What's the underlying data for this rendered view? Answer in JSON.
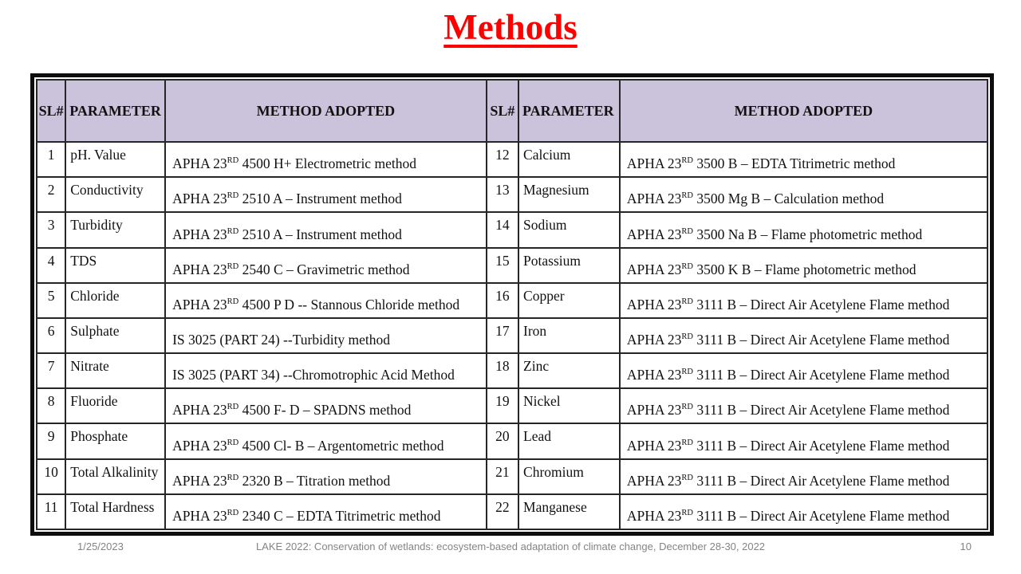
{
  "slide": {
    "title": "Methods",
    "title_color": "#ff0000"
  },
  "table": {
    "header_bg": "#cbc3dc",
    "border_color": "#0d0d0d",
    "headers": {
      "sl": "SL#",
      "parameter": "PARAMETER",
      "method": "METHOD ADOPTED"
    },
    "left_rows": [
      {
        "sl": "1",
        "parameter": "pH. Value",
        "method": {
          "pre": "APHA 23",
          "sup": "RD",
          "rest": " 4500 H+ Electrometric method"
        }
      },
      {
        "sl": "2",
        "parameter": "Conductivity",
        "method": {
          "pre": "APHA 23",
          "sup": "RD",
          "rest": " 2510 A – Instrument method"
        }
      },
      {
        "sl": "3",
        "parameter": "Turbidity",
        "method": {
          "pre": "APHA 23",
          "sup": "RD",
          "rest": " 2510 A – Instrument method"
        }
      },
      {
        "sl": "4",
        "parameter": "TDS",
        "method": {
          "pre": "APHA 23",
          "sup": "RD",
          "rest": " 2540 C – Gravimetric method"
        }
      },
      {
        "sl": "5",
        "parameter": "Chloride",
        "method": {
          "pre": "APHA 23",
          "sup": "RD",
          "rest": " 4500 P D -- Stannous Chloride method"
        }
      },
      {
        "sl": "6",
        "parameter": "Sulphate",
        "method": {
          "pre": "IS 3025 (PART 24) --Turbidity method",
          "sup": "",
          "rest": ""
        }
      },
      {
        "sl": "7",
        "parameter": "Nitrate",
        "method": {
          "pre": "IS 3025 (PART 34) --Chromotrophic Acid Method",
          "sup": "",
          "rest": ""
        }
      },
      {
        "sl": "8",
        "parameter": "Fluoride",
        "method": {
          "pre": "APHA 23",
          "sup": "RD",
          "rest": " 4500 F- D – SPADNS method"
        }
      },
      {
        "sl": "9",
        "parameter": "Phosphate",
        "method": {
          "pre": "APHA 23",
          "sup": "RD",
          "rest": " 4500 Cl- B – Argentometric method"
        }
      },
      {
        "sl": "10",
        "parameter": "Total Alkalinity",
        "method": {
          "pre": "APHA 23",
          "sup": "RD",
          "rest": " 2320 B – Titration method"
        }
      },
      {
        "sl": "11",
        "parameter": "Total Hardness",
        "method": {
          "pre": "APHA 23",
          "sup": "RD",
          "rest": " 2340 C – EDTA Titrimetric method"
        }
      }
    ],
    "right_rows": [
      {
        "sl": "12",
        "parameter": "Calcium",
        "method": {
          "pre": "APHA 23",
          "sup": "RD",
          "rest": " 3500 B – EDTA Titrimetric method"
        }
      },
      {
        "sl": "13",
        "parameter": "Magnesium",
        "method": {
          "pre": "APHA 23",
          "sup": "RD",
          "rest": " 3500 Mg B – Calculation method"
        }
      },
      {
        "sl": "14",
        "parameter": "Sodium",
        "method": {
          "pre": "APHA 23",
          "sup": "RD",
          "rest": " 3500 Na B – Flame photometric method"
        }
      },
      {
        "sl": "15",
        "parameter": "Potassium",
        "method": {
          "pre": "APHA 23",
          "sup": "RD",
          "rest": " 3500 K B – Flame photometric method"
        }
      },
      {
        "sl": "16",
        "parameter": "Copper",
        "method": {
          "pre": "APHA 23",
          "sup": "RD",
          "rest": " 3111 B – Direct Air Acetylene Flame method"
        }
      },
      {
        "sl": "17",
        "parameter": "Iron",
        "method": {
          "pre": "APHA 23",
          "sup": "RD",
          "rest": " 3111 B – Direct Air Acetylene Flame method"
        }
      },
      {
        "sl": "18",
        "parameter": "Zinc",
        "method": {
          "pre": "APHA 23",
          "sup": "RD",
          "rest": " 3111 B – Direct Air Acetylene Flame method"
        }
      },
      {
        "sl": "19",
        "parameter": "Nickel",
        "method": {
          "pre": "APHA 23",
          "sup": "RD",
          "rest": " 3111 B – Direct Air Acetylene Flame method"
        }
      },
      {
        "sl": "20",
        "parameter": "Lead",
        "method": {
          "pre": "APHA 23",
          "sup": "RD",
          "rest": " 3111 B – Direct Air Acetylene Flame method"
        }
      },
      {
        "sl": "21",
        "parameter": "Chromium",
        "method": {
          "pre": "APHA 23",
          "sup": "RD",
          "rest": " 3111 B – Direct Air Acetylene Flame method"
        }
      },
      {
        "sl": "22",
        "parameter": "Manganese",
        "method": {
          "pre": "APHA 23",
          "sup": "RD",
          "rest": " 3111 B – Direct Air Acetylene Flame method"
        }
      }
    ]
  },
  "footer": {
    "date": "1/25/2023",
    "conference": "LAKE 2022: Conservation of wetlands: ecosystem-based adaptation of climate change, December 28-30, 2022",
    "page_number": "10"
  }
}
